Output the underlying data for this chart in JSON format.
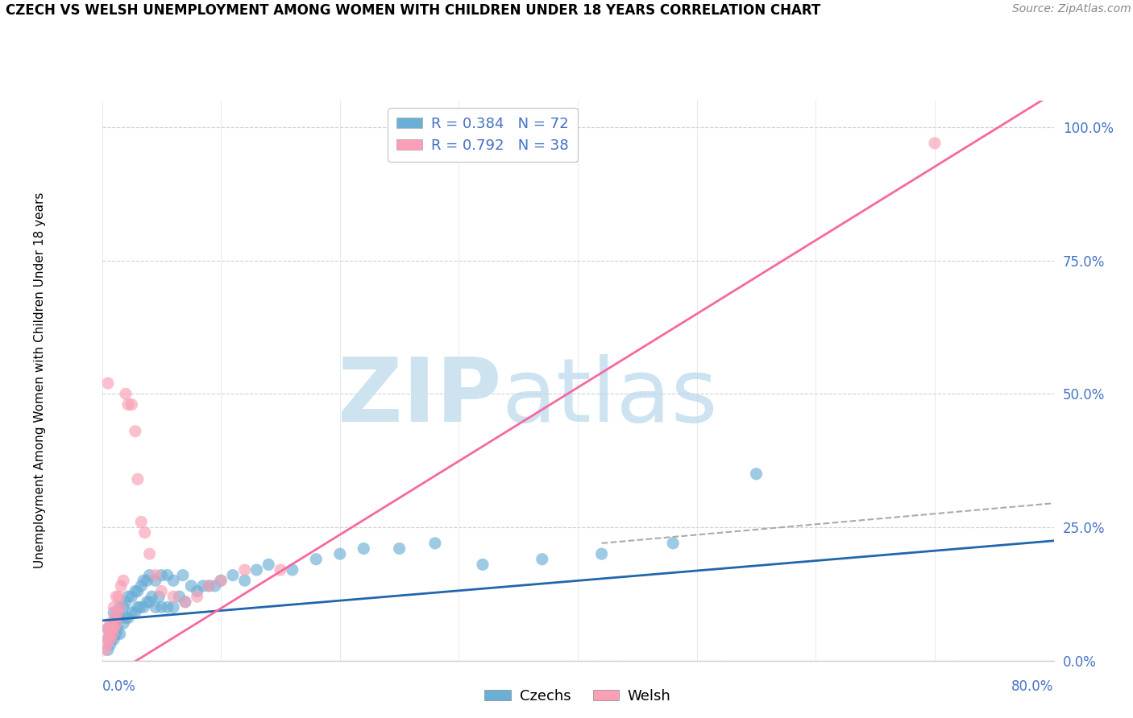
{
  "title": "CZECH VS WELSH UNEMPLOYMENT AMONG WOMEN WITH CHILDREN UNDER 18 YEARS CORRELATION CHART",
  "source": "Source: ZipAtlas.com",
  "ylabel": "Unemployment Among Women with Children Under 18 years",
  "right_yticks": [
    "0.0%",
    "25.0%",
    "50.0%",
    "75.0%",
    "100.0%"
  ],
  "right_ytick_vals": [
    0.0,
    0.25,
    0.5,
    0.75,
    1.0
  ],
  "czech_color": "#6baed6",
  "welsh_color": "#fa9fb5",
  "czech_line_color": "#2166ac",
  "welsh_line_color": "#f768a1",
  "xlim": [
    0.0,
    0.8
  ],
  "ylim": [
    0.0,
    1.05
  ],
  "czech_R": 0.384,
  "czech_N": 72,
  "welsh_R": 0.792,
  "welsh_N": 38,
  "czech_scatter_x": [
    0.005,
    0.005,
    0.005,
    0.007,
    0.007,
    0.008,
    0.008,
    0.009,
    0.01,
    0.01,
    0.01,
    0.012,
    0.012,
    0.013,
    0.013,
    0.015,
    0.015,
    0.015,
    0.018,
    0.018,
    0.02,
    0.02,
    0.022,
    0.022,
    0.025,
    0.025,
    0.028,
    0.028,
    0.03,
    0.03,
    0.032,
    0.033,
    0.035,
    0.035,
    0.038,
    0.038,
    0.04,
    0.04,
    0.042,
    0.045,
    0.045,
    0.048,
    0.05,
    0.05,
    0.055,
    0.055,
    0.06,
    0.06,
    0.065,
    0.068,
    0.07,
    0.075,
    0.08,
    0.085,
    0.09,
    0.095,
    0.1,
    0.11,
    0.12,
    0.13,
    0.14,
    0.16,
    0.18,
    0.2,
    0.22,
    0.25,
    0.28,
    0.32,
    0.37,
    0.42,
    0.48,
    0.55
  ],
  "czech_scatter_y": [
    0.02,
    0.04,
    0.06,
    0.03,
    0.05,
    0.04,
    0.06,
    0.05,
    0.04,
    0.07,
    0.09,
    0.05,
    0.08,
    0.06,
    0.09,
    0.05,
    0.08,
    0.1,
    0.07,
    0.1,
    0.08,
    0.11,
    0.08,
    0.12,
    0.09,
    0.12,
    0.09,
    0.13,
    0.1,
    0.13,
    0.1,
    0.14,
    0.1,
    0.15,
    0.11,
    0.15,
    0.11,
    0.16,
    0.12,
    0.1,
    0.15,
    0.12,
    0.1,
    0.16,
    0.1,
    0.16,
    0.1,
    0.15,
    0.12,
    0.16,
    0.11,
    0.14,
    0.13,
    0.14,
    0.14,
    0.14,
    0.15,
    0.16,
    0.15,
    0.17,
    0.18,
    0.17,
    0.19,
    0.2,
    0.21,
    0.21,
    0.22,
    0.18,
    0.19,
    0.2,
    0.22,
    0.35
  ],
  "welsh_scatter_x": [
    0.003,
    0.004,
    0.005,
    0.005,
    0.006,
    0.007,
    0.007,
    0.008,
    0.009,
    0.01,
    0.01,
    0.011,
    0.012,
    0.012,
    0.013,
    0.014,
    0.015,
    0.016,
    0.018,
    0.02,
    0.022,
    0.025,
    0.028,
    0.03,
    0.033,
    0.036,
    0.04,
    0.045,
    0.05,
    0.06,
    0.07,
    0.08,
    0.09,
    0.1,
    0.12,
    0.15,
    0.7,
    0.005
  ],
  "welsh_scatter_y": [
    0.02,
    0.03,
    0.04,
    0.06,
    0.05,
    0.04,
    0.07,
    0.06,
    0.05,
    0.06,
    0.1,
    0.08,
    0.07,
    0.12,
    0.09,
    0.12,
    0.1,
    0.14,
    0.15,
    0.5,
    0.48,
    0.48,
    0.43,
    0.34,
    0.26,
    0.24,
    0.2,
    0.16,
    0.13,
    0.12,
    0.11,
    0.12,
    0.14,
    0.15,
    0.17,
    0.17,
    0.97,
    0.52
  ]
}
